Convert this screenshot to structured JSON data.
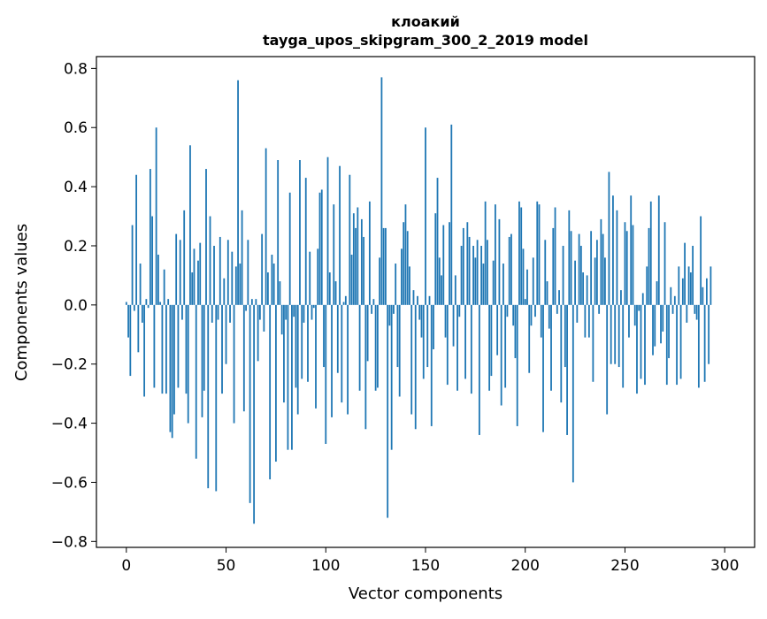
{
  "chart_data": {
    "type": "bar",
    "title_line1": "клоакий",
    "title_line2": "tayga_upos_skipgram_300_2_2019 model",
    "xlabel": "Vector components",
    "ylabel": "Components values",
    "xlim": [
      -15,
      315
    ],
    "ylim": [
      -0.82,
      0.84
    ],
    "x_ticks": [
      0,
      50,
      100,
      150,
      200,
      250,
      300
    ],
    "x_tick_labels": [
      "0",
      "50",
      "100",
      "150",
      "200",
      "250",
      "300"
    ],
    "y_ticks": [
      -0.8,
      -0.6,
      -0.4,
      -0.2,
      0.0,
      0.2,
      0.4,
      0.6,
      0.8
    ],
    "y_tick_labels": [
      "−0.8",
      "−0.6",
      "−0.4",
      "−0.2",
      "0.0",
      "0.2",
      "0.4",
      "0.6",
      "0.8"
    ],
    "bar_color": "#1f77b4",
    "grid": false,
    "values": [
      0.01,
      -0.11,
      -0.24,
      0.27,
      -0.02,
      0.44,
      -0.16,
      0.14,
      -0.06,
      -0.31,
      0.02,
      -0.01,
      0.46,
      0.3,
      -0.28,
      0.6,
      0.17,
      0.01,
      -0.3,
      0.12,
      -0.3,
      0.02,
      -0.43,
      -0.45,
      -0.37,
      0.24,
      -0.28,
      0.22,
      -0.05,
      0.32,
      -0.3,
      -0.4,
      0.54,
      0.11,
      0.19,
      -0.52,
      0.15,
      0.21,
      -0.38,
      -0.29,
      0.46,
      -0.62,
      0.3,
      -0.06,
      0.2,
      -0.63,
      -0.05,
      0.23,
      -0.3,
      0.09,
      -0.2,
      0.22,
      -0.06,
      0.18,
      -0.4,
      0.13,
      0.76,
      0.14,
      0.32,
      -0.36,
      -0.02,
      0.22,
      -0.67,
      0.02,
      -0.74,
      0.02,
      -0.19,
      -0.05,
      0.24,
      -0.09,
      0.53,
      0.11,
      -0.59,
      0.17,
      0.14,
      -0.53,
      0.49,
      0.08,
      -0.1,
      -0.33,
      -0.05,
      -0.49,
      0.38,
      -0.49,
      -0.04,
      -0.28,
      -0.37,
      0.49,
      -0.25,
      -0.06,
      0.43,
      -0.26,
      0.18,
      -0.05,
      -0.01,
      -0.35,
      0.19,
      0.38,
      0.39,
      -0.21,
      -0.47,
      0.5,
      0.11,
      -0.38,
      0.34,
      0.08,
      -0.23,
      0.47,
      -0.33,
      0.01,
      0.03,
      -0.37,
      0.44,
      0.17,
      0.31,
      0.26,
      0.33,
      -0.29,
      0.29,
      0.23,
      -0.42,
      -0.19,
      0.35,
      -0.03,
      0.02,
      -0.29,
      -0.28,
      0.16,
      0.77,
      0.26,
      0.26,
      -0.72,
      -0.07,
      -0.49,
      -0.03,
      0.14,
      -0.21,
      -0.31,
      0.19,
      0.28,
      0.34,
      0.25,
      0.13,
      -0.37,
      0.05,
      -0.42,
      0.03,
      -0.05,
      -0.11,
      -0.25,
      0.6,
      -0.21,
      0.03,
      -0.41,
      -0.15,
      0.31,
      0.43,
      0.16,
      0.1,
      0.27,
      -0.11,
      -0.27,
      0.28,
      0.61,
      -0.14,
      0.1,
      -0.29,
      -0.04,
      0.2,
      0.26,
      -0.25,
      0.28,
      0.23,
      -0.3,
      0.2,
      0.16,
      0.22,
      -0.44,
      0.2,
      0.14,
      0.35,
      0.22,
      -0.29,
      -0.24,
      0.15,
      0.34,
      -0.17,
      0.29,
      -0.34,
      0.14,
      -0.28,
      -0.04,
      0.23,
      0.24,
      -0.07,
      -0.18,
      -0.41,
      0.35,
      0.33,
      0.19,
      0.02,
      0.12,
      -0.23,
      -0.07,
      0.16,
      -0.04,
      0.35,
      0.34,
      -0.11,
      -0.43,
      0.22,
      0.08,
      -0.08,
      -0.29,
      0.26,
      0.33,
      -0.03,
      0.05,
      -0.33,
      0.2,
      -0.21,
      -0.44,
      0.32,
      0.25,
      -0.6,
      0.15,
      -0.06,
      0.24,
      0.2,
      0.11,
      -0.11,
      0.1,
      -0.11,
      0.25,
      -0.26,
      0.16,
      0.22,
      -0.03,
      0.29,
      0.24,
      0.16,
      -0.37,
      0.45,
      -0.2,
      0.37,
      -0.2,
      0.32,
      -0.21,
      0.05,
      -0.28,
      0.28,
      0.25,
      -0.11,
      0.37,
      0.27,
      -0.07,
      -0.3,
      -0.02,
      -0.25,
      0.04,
      -0.27,
      0.13,
      0.26,
      0.35,
      -0.17,
      -0.14,
      0.08,
      0.37,
      -0.13,
      -0.09,
      0.28,
      -0.27,
      -0.18,
      0.06,
      -0.03,
      0.03,
      -0.27,
      0.13,
      -0.25,
      0.09,
      0.21,
      -0.06,
      0.13,
      0.11,
      0.2,
      -0.03,
      -0.05,
      -0.28,
      0.3,
      0.06,
      -0.26,
      0.09,
      -0.2,
      0.13
    ]
  }
}
